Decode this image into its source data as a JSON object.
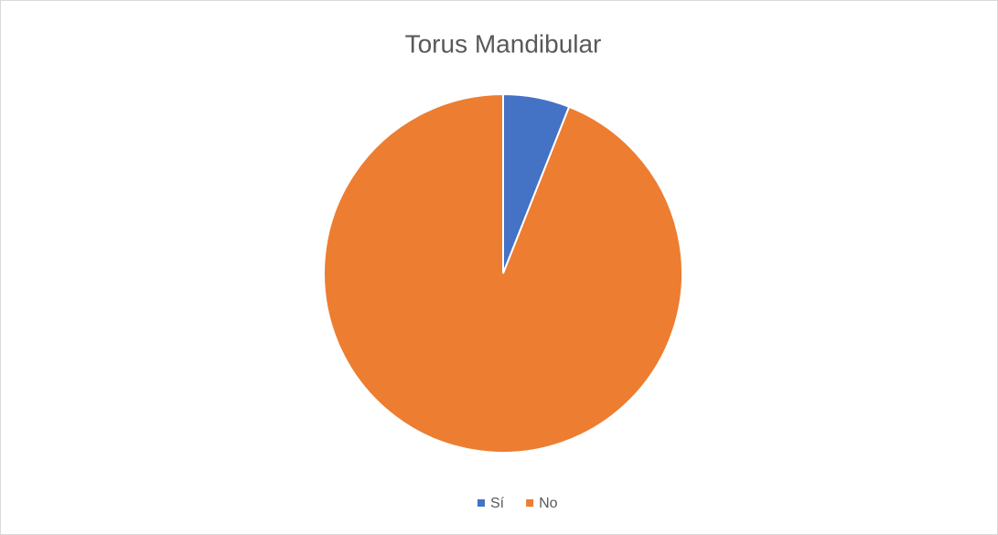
{
  "chart_data": {
    "type": "pie",
    "title": "Torus Mandibular",
    "categories": [
      "Sí",
      "No"
    ],
    "values": [
      6,
      94
    ],
    "colors": [
      "#4472c4",
      "#ed7d31"
    ],
    "legend": "bottom"
  }
}
